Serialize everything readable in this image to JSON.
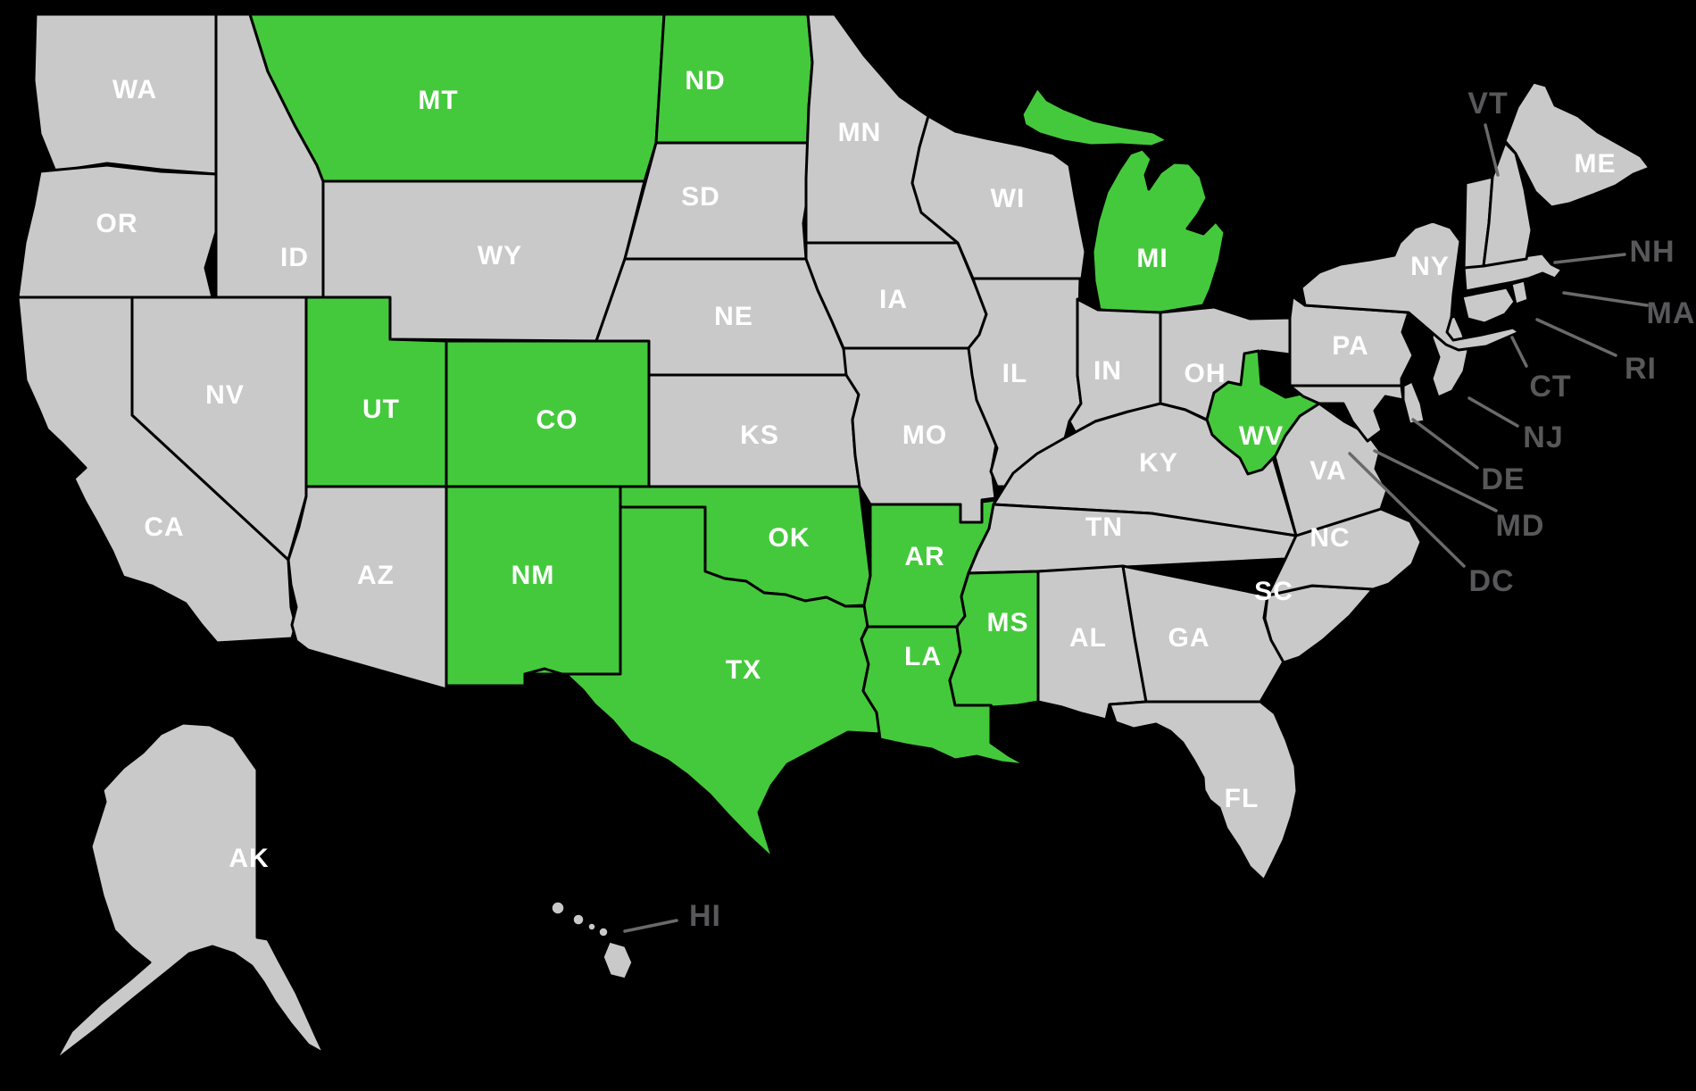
{
  "map": {
    "region": "United States",
    "description": "US map with a subset of states highlighted in green",
    "colors": {
      "background": "#000000",
      "state_default": "#c9c9c9",
      "state_highlighted": "#45c93c",
      "border": "#000000",
      "inside_label": "#ffffff",
      "outside_label": "#58585a",
      "leader_line": "#6a6a6a"
    },
    "highlighted_state_codes": [
      "MT",
      "ND",
      "MI",
      "UT",
      "CO",
      "NM",
      "OK",
      "AR",
      "MS",
      "LA",
      "TX",
      "WV"
    ],
    "states": [
      {
        "code": "WA",
        "highlighted": false
      },
      {
        "code": "OR",
        "highlighted": false
      },
      {
        "code": "CA",
        "highlighted": false
      },
      {
        "code": "NV",
        "highlighted": false
      },
      {
        "code": "ID",
        "highlighted": false
      },
      {
        "code": "UT",
        "highlighted": true
      },
      {
        "code": "AZ",
        "highlighted": false
      },
      {
        "code": "MT",
        "highlighted": true
      },
      {
        "code": "WY",
        "highlighted": false
      },
      {
        "code": "CO",
        "highlighted": true
      },
      {
        "code": "NM",
        "highlighted": true
      },
      {
        "code": "ND",
        "highlighted": true
      },
      {
        "code": "SD",
        "highlighted": false
      },
      {
        "code": "NE",
        "highlighted": false
      },
      {
        "code": "KS",
        "highlighted": false
      },
      {
        "code": "OK",
        "highlighted": true
      },
      {
        "code": "TX",
        "highlighted": true
      },
      {
        "code": "MN",
        "highlighted": false
      },
      {
        "code": "IA",
        "highlighted": false
      },
      {
        "code": "MO",
        "highlighted": false
      },
      {
        "code": "AR",
        "highlighted": true
      },
      {
        "code": "LA",
        "highlighted": true
      },
      {
        "code": "WI",
        "highlighted": false
      },
      {
        "code": "IL",
        "highlighted": false
      },
      {
        "code": "MI",
        "highlighted": true
      },
      {
        "code": "IN",
        "highlighted": false
      },
      {
        "code": "OH",
        "highlighted": false
      },
      {
        "code": "KY",
        "highlighted": false
      },
      {
        "code": "TN",
        "highlighted": false
      },
      {
        "code": "MS",
        "highlighted": true
      },
      {
        "code": "AL",
        "highlighted": false
      },
      {
        "code": "GA",
        "highlighted": false
      },
      {
        "code": "SC",
        "highlighted": false
      },
      {
        "code": "NC",
        "highlighted": false
      },
      {
        "code": "VA",
        "highlighted": false
      },
      {
        "code": "WV",
        "highlighted": true
      },
      {
        "code": "PA",
        "highlighted": false
      },
      {
        "code": "NY",
        "highlighted": false
      },
      {
        "code": "ME",
        "highlighted": false
      },
      {
        "code": "FL",
        "highlighted": false
      },
      {
        "code": "AK",
        "highlighted": false
      }
    ],
    "outside_labels": [
      {
        "code": "VT",
        "highlighted": false
      },
      {
        "code": "NH",
        "highlighted": false
      },
      {
        "code": "MA",
        "highlighted": false
      },
      {
        "code": "RI",
        "highlighted": false
      },
      {
        "code": "CT",
        "highlighted": false
      },
      {
        "code": "NJ",
        "highlighted": false
      },
      {
        "code": "DE",
        "highlighted": false
      },
      {
        "code": "MD",
        "highlighted": false
      },
      {
        "code": "DC",
        "highlighted": false
      },
      {
        "code": "HI",
        "highlighted": false
      }
    ]
  }
}
